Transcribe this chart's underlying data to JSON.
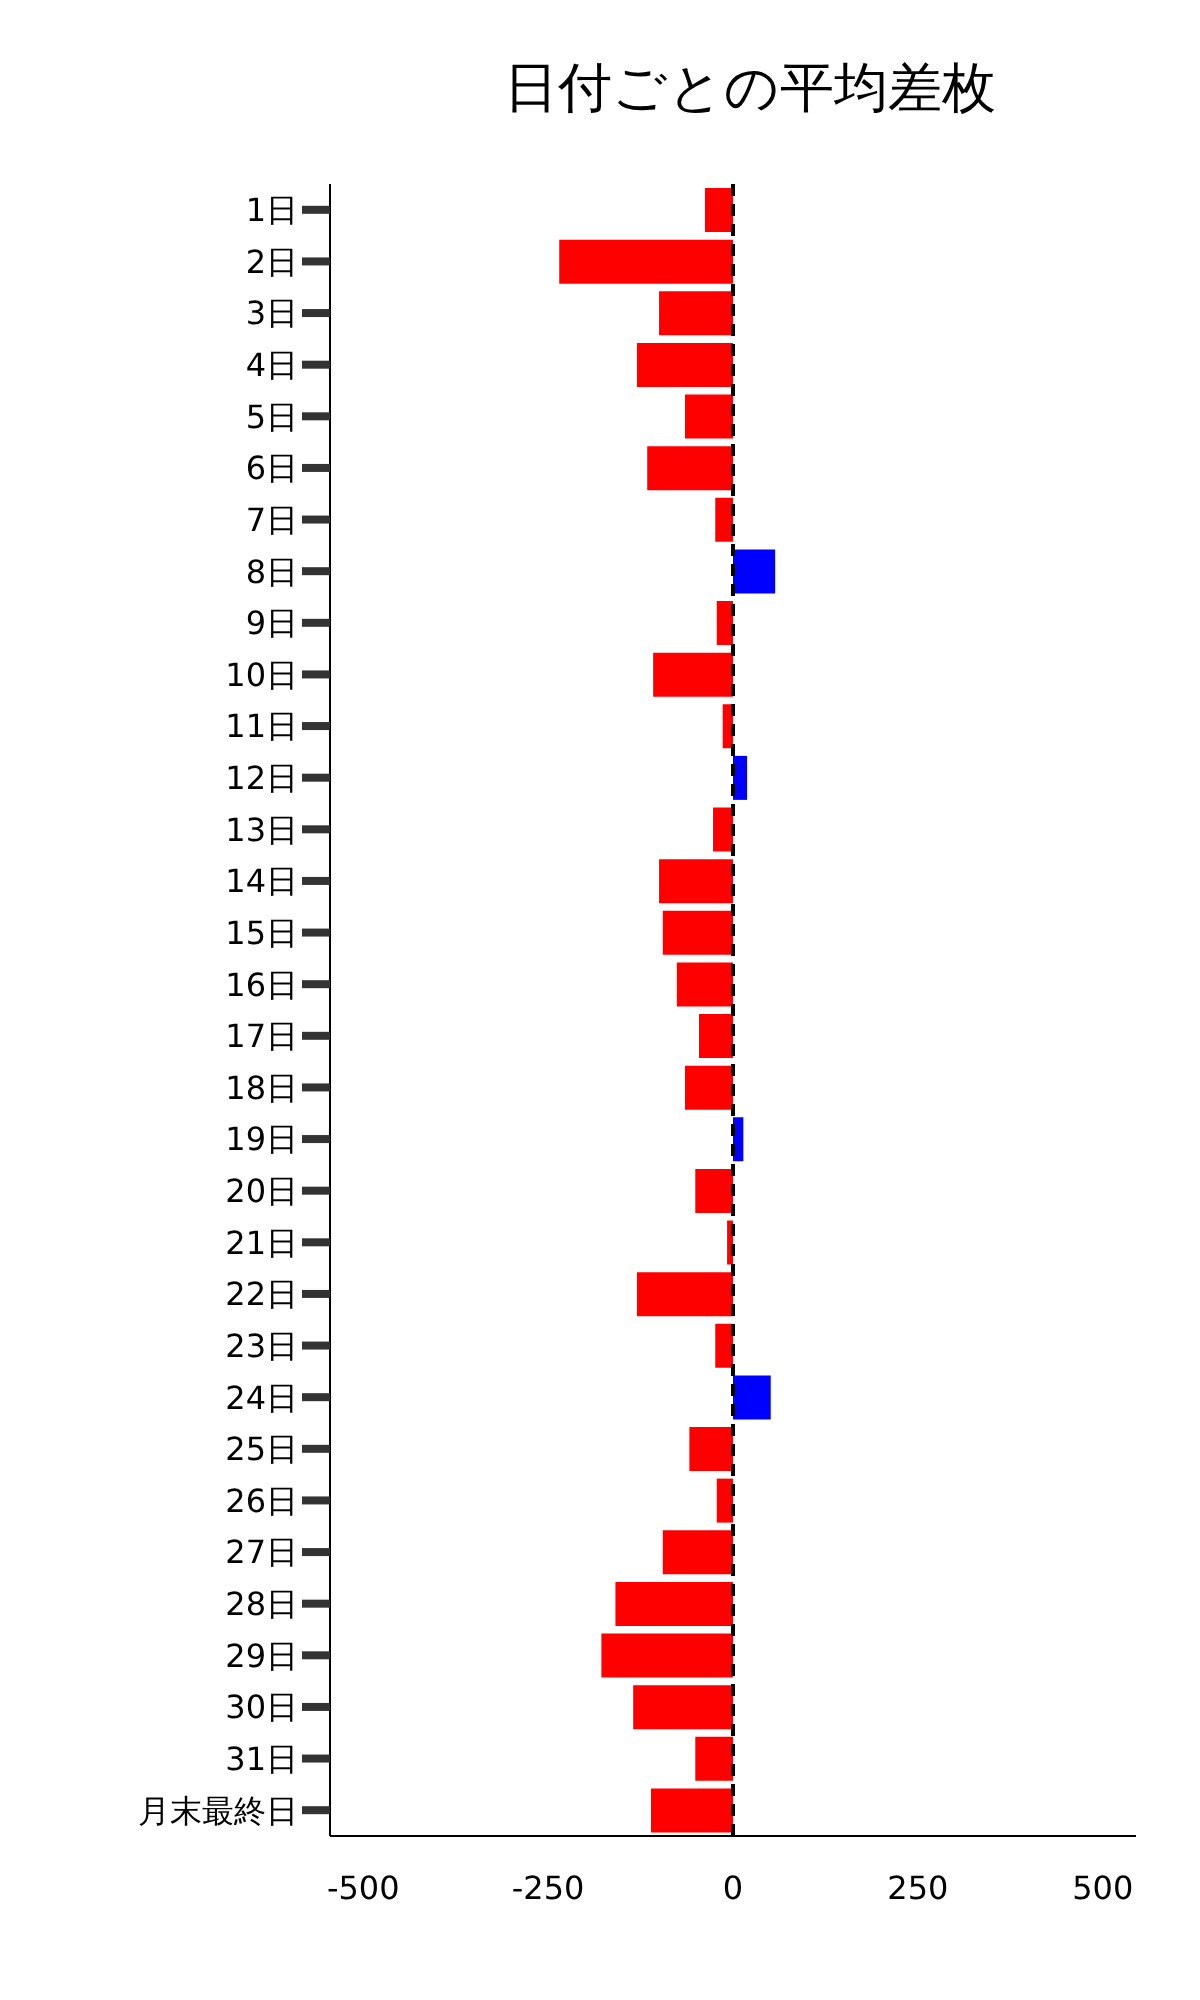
{
  "chart_data": {
    "type": "bar",
    "orientation": "horizontal",
    "title": "日付ごとの平均差枚",
    "categories": [
      "1日",
      "2日",
      "3日",
      "4日",
      "5日",
      "6日",
      "7日",
      "8日",
      "9日",
      "10日",
      "11日",
      "12日",
      "13日",
      "14日",
      "15日",
      "16日",
      "17日",
      "18日",
      "19日",
      "20日",
      "21日",
      "22日",
      "23日",
      "24日",
      "25日",
      "26日",
      "27日",
      "28日",
      "29日",
      "30日",
      "31日",
      "月末最終日"
    ],
    "values": [
      -38,
      -235,
      -100,
      -130,
      -65,
      -116,
      -24,
      57,
      -22,
      -108,
      -14,
      19,
      -27,
      -100,
      -95,
      -76,
      -46,
      -65,
      14,
      -51,
      -8,
      -130,
      -24,
      51,
      -59,
      -22,
      -95,
      -159,
      -178,
      -135,
      -51,
      -111
    ],
    "colors": [
      "#ff0000",
      "#ff0000",
      "#ff0000",
      "#ff0000",
      "#ff0000",
      "#ff0000",
      "#ff0000",
      "#0000ff",
      "#ff0000",
      "#ff0000",
      "#ff0000",
      "#0000ff",
      "#ff0000",
      "#ff0000",
      "#ff0000",
      "#ff0000",
      "#ff0000",
      "#ff0000",
      "#0000ff",
      "#ff0000",
      "#ff0000",
      "#ff0000",
      "#ff0000",
      "#0000ff",
      "#ff0000",
      "#ff0000",
      "#ff0000",
      "#ff0000",
      "#ff0000",
      "#ff0000",
      "#ff0000",
      "#ff0000"
    ],
    "xlim": [
      -545,
      545
    ],
    "xticks": [
      -500,
      -250,
      0,
      250,
      500
    ],
    "ref_lines": [
      {
        "axis": "x",
        "value": 0,
        "color": "#000000",
        "line_style": "dashed"
      }
    ],
    "grid": false
  }
}
